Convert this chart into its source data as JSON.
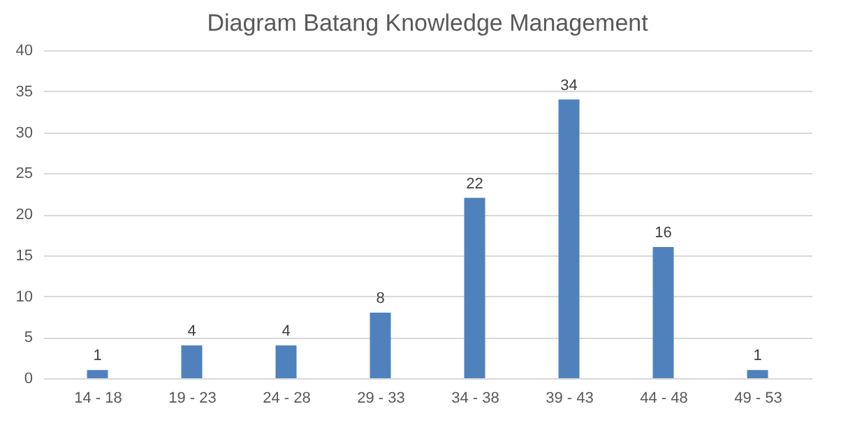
{
  "chart_data": {
    "type": "bar",
    "title": "Diagram Batang Knowledge Management",
    "categories": [
      "14 - 18",
      "19 - 23",
      "24 - 28",
      "29 - 33",
      "34 - 38",
      "39 - 43",
      "44 - 48",
      "49 - 53"
    ],
    "values": [
      1,
      4,
      4,
      8,
      22,
      34,
      16,
      1
    ],
    "color": "#4f81bd",
    "ylim": [
      0,
      40
    ],
    "yticks": [
      0,
      5,
      10,
      15,
      20,
      25,
      30,
      35,
      40
    ],
    "grid": "y",
    "data_labels": true
  }
}
